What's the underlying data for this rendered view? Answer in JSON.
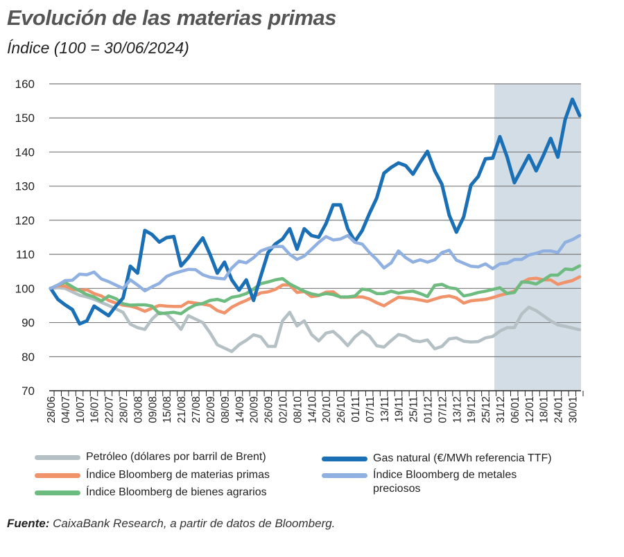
{
  "title": "Evolución de las materias primas",
  "subtitle": "Índice (100 = 30/06/2024)",
  "source_label": "Fuente:",
  "source_text": "CaixaBank Research, a partir de datos de Bloomberg.",
  "chart_data": {
    "type": "line",
    "title": "Evolución de las materias primas",
    "subtitle": "Índice (100 = 30/06/2024)",
    "ylim": [
      70,
      160
    ],
    "yticks": [
      70,
      80,
      90,
      100,
      110,
      120,
      130,
      140,
      150,
      160
    ],
    "grid": "horizontal",
    "legend_position": "bottom",
    "shaded_region_from": "31/12",
    "shade_color": "#d3dde5",
    "x": [
      "28/06",
      "01/07",
      "04/07",
      "07/07",
      "10/07",
      "13/07",
      "16/07",
      "19/07",
      "22/07",
      "25/07",
      "28/07",
      "31/07",
      "03/08",
      "06/08",
      "09/08",
      "12/08",
      "15/08",
      "18/08",
      "21/08",
      "24/08",
      "27/08",
      "30/08",
      "02/09",
      "05/09",
      "08/09",
      "11/09",
      "14/09",
      "17/09",
      "20/09",
      "23/09",
      "26/09",
      "29/09",
      "02/10",
      "05/10",
      "08/10",
      "11/10",
      "14/10",
      "17/10",
      "20/10",
      "23/10",
      "26/10",
      "29/10",
      "01/11",
      "04/11",
      "07/11",
      "10/11",
      "13/11",
      "16/11",
      "19/11",
      "22/11",
      "25/11",
      "28/11",
      "01/12",
      "04/12",
      "07/12",
      "10/12",
      "13/12",
      "16/12",
      "19/12",
      "22/12",
      "25/12",
      "28/12",
      "31/12",
      "03/01",
      "06/01",
      "09/01",
      "12/01",
      "15/01",
      "18/01",
      "21/01",
      "24/01",
      "27/01",
      "30/01",
      "02/02"
    ],
    "xtick_labels": [
      "28/06",
      "04/07",
      "10/07",
      "16/07",
      "22/07",
      "28/07",
      "03/08",
      "09/08",
      "15/08",
      "21/08",
      "27/08",
      "02/09",
      "08/09",
      "14/09",
      "20/09",
      "26/09",
      "02/10",
      "08/10",
      "14/10",
      "20/10",
      "26/10",
      "01/11",
      "07/11",
      "13/11",
      "19/11",
      "25/11",
      "01/12",
      "07/12",
      "13/12",
      "19/12",
      "25/12",
      "31/12",
      "06/01",
      "12/01",
      "18/01",
      "24/01",
      "30/01"
    ],
    "series": [
      {
        "name": "Petróleo (dólares por barril de Brent)",
        "color": "#b4c0c4",
        "values": [
          100,
          100.2,
          100,
          99,
          98,
          97.5,
          96.8,
          95.9,
          95,
          94,
          93,
          89.5,
          88.5,
          88,
          91,
          93,
          92.5,
          90.5,
          88,
          92,
          91,
          90,
          87,
          83.5,
          82.5,
          81.5,
          83.5,
          84.8,
          86.4,
          85.8,
          83,
          83,
          90.5,
          93,
          89,
          90.5,
          86.5,
          84.6,
          86.9,
          87.4,
          85.5,
          83.2,
          85.8,
          87.5,
          86,
          83.2,
          82.8,
          84.7,
          86.5,
          86,
          84.7,
          84.4,
          84.9,
          82.3,
          83,
          85.2,
          85.5,
          84.5,
          84.3,
          84.4,
          85.5,
          85.9,
          87.5,
          88.5,
          88.5,
          92.5,
          94.5,
          93.5,
          92,
          90.5,
          89.3,
          88.9,
          88.4,
          87.9
        ]
      },
      {
        "name": "Índice Bloomberg de materias primas",
        "color": "#f0926a",
        "values": [
          100,
          100.8,
          100.7,
          99.8,
          99.4,
          99.6,
          98.5,
          97.8,
          96.5,
          95.7,
          95.1,
          94.8,
          94.2,
          93.3,
          94.2,
          95,
          94.8,
          94.7,
          94.7,
          96,
          95.7,
          95.4,
          95,
          93.5,
          92.8,
          94.5,
          95.6,
          96.5,
          97.6,
          98.7,
          99,
          99.7,
          101,
          101,
          98.8,
          99.1,
          97.6,
          97.9,
          98.9,
          99,
          97.4,
          97.4,
          97.5,
          97.5,
          96.9,
          95.8,
          94.9,
          96.2,
          97.4,
          97.2,
          97,
          96.6,
          96.2,
          96.9,
          97.5,
          97.8,
          97.2,
          95.7,
          96.4,
          96.6,
          96.8,
          97.3,
          98,
          98.5,
          99.2,
          101.7,
          102.8,
          103,
          102.5,
          102.5,
          101.2,
          101.8,
          102.3,
          103.4
        ]
      },
      {
        "name": "Índice Bloomberg de bienes agrarios",
        "color": "#6dbb7f",
        "values": [
          100,
          101,
          101.8,
          100.5,
          99.3,
          98.2,
          97.5,
          96.3,
          97.8,
          97,
          95.5,
          95.1,
          95.2,
          95.2,
          94.8,
          92.6,
          92.8,
          93,
          92.6,
          94.1,
          95.2,
          95.6,
          96.5,
          96.8,
          96.2,
          97.4,
          97.8,
          98.5,
          99.8,
          101.4,
          101.9,
          102.5,
          102.9,
          101.3,
          100.2,
          99.2,
          98.4,
          98,
          98.5,
          98.2,
          97.5,
          97.5,
          97.8,
          99.8,
          99.5,
          98.5,
          98.5,
          99.2,
          98.6,
          99,
          99.2,
          98.5,
          97.6,
          100.9,
          101.2,
          100.2,
          99.9,
          97.8,
          98.2,
          98.8,
          99.2,
          99.7,
          100.2,
          98.5,
          98.8,
          101.9,
          101.8,
          101.3,
          102.5,
          103.9,
          103.9,
          105.7,
          105.5,
          106.6
        ]
      },
      {
        "name": "Gas natural (€/MWh referencia TTF)",
        "color": "#1a6fb5",
        "values": [
          100,
          96.8,
          95.2,
          93.8,
          89.6,
          90.5,
          94.8,
          93.4,
          92,
          94.8,
          97.2,
          106.5,
          104.5,
          117,
          115.8,
          113.6,
          114.9,
          115.2,
          106.6,
          109,
          112,
          114.8,
          110,
          104.5,
          107.7,
          102.5,
          99.5,
          102.5,
          96.5,
          103.6,
          110.5,
          113,
          114.5,
          117.5,
          111.5,
          117.5,
          115.5,
          115,
          119,
          124.5,
          124.5,
          117.5,
          113.8,
          117,
          122,
          126.5,
          133.8,
          135.5,
          136.8,
          136,
          133.5,
          137,
          140.2,
          134.5,
          130.5,
          121.5,
          116.5,
          121,
          130.3,
          132.8,
          138,
          138.2,
          144.5,
          138.5,
          131,
          135,
          139,
          134.5,
          139,
          144,
          138.5,
          149.5,
          155.5,
          150.7
        ]
      },
      {
        "name": "Índice Bloomberg de metales preciosos",
        "color": "#8fb0e0",
        "values": [
          100,
          101,
          102.3,
          102.4,
          104.2,
          104,
          104.8,
          102.8,
          102,
          101,
          100,
          102.5,
          101,
          99.3,
          100.5,
          101.5,
          103.5,
          104.4,
          105,
          105.6,
          105.5,
          104,
          103.3,
          103,
          102.8,
          106,
          108,
          107.5,
          109,
          111,
          111.8,
          112.3,
          112.3,
          110,
          108.5,
          109.5,
          111.5,
          113.5,
          115.2,
          114.2,
          114.5,
          115.5,
          113.5,
          113,
          110.5,
          108.5,
          106,
          107.5,
          111,
          109,
          107.7,
          108.4,
          107.7,
          108.4,
          110.5,
          111.2,
          108.3,
          107.4,
          106.5,
          106.3,
          107.2,
          105.8,
          107.2,
          107.4,
          108.5,
          108.5,
          109.8,
          110.3,
          111,
          111,
          110.5,
          113.5,
          114.3,
          115.5
        ]
      }
    ]
  }
}
